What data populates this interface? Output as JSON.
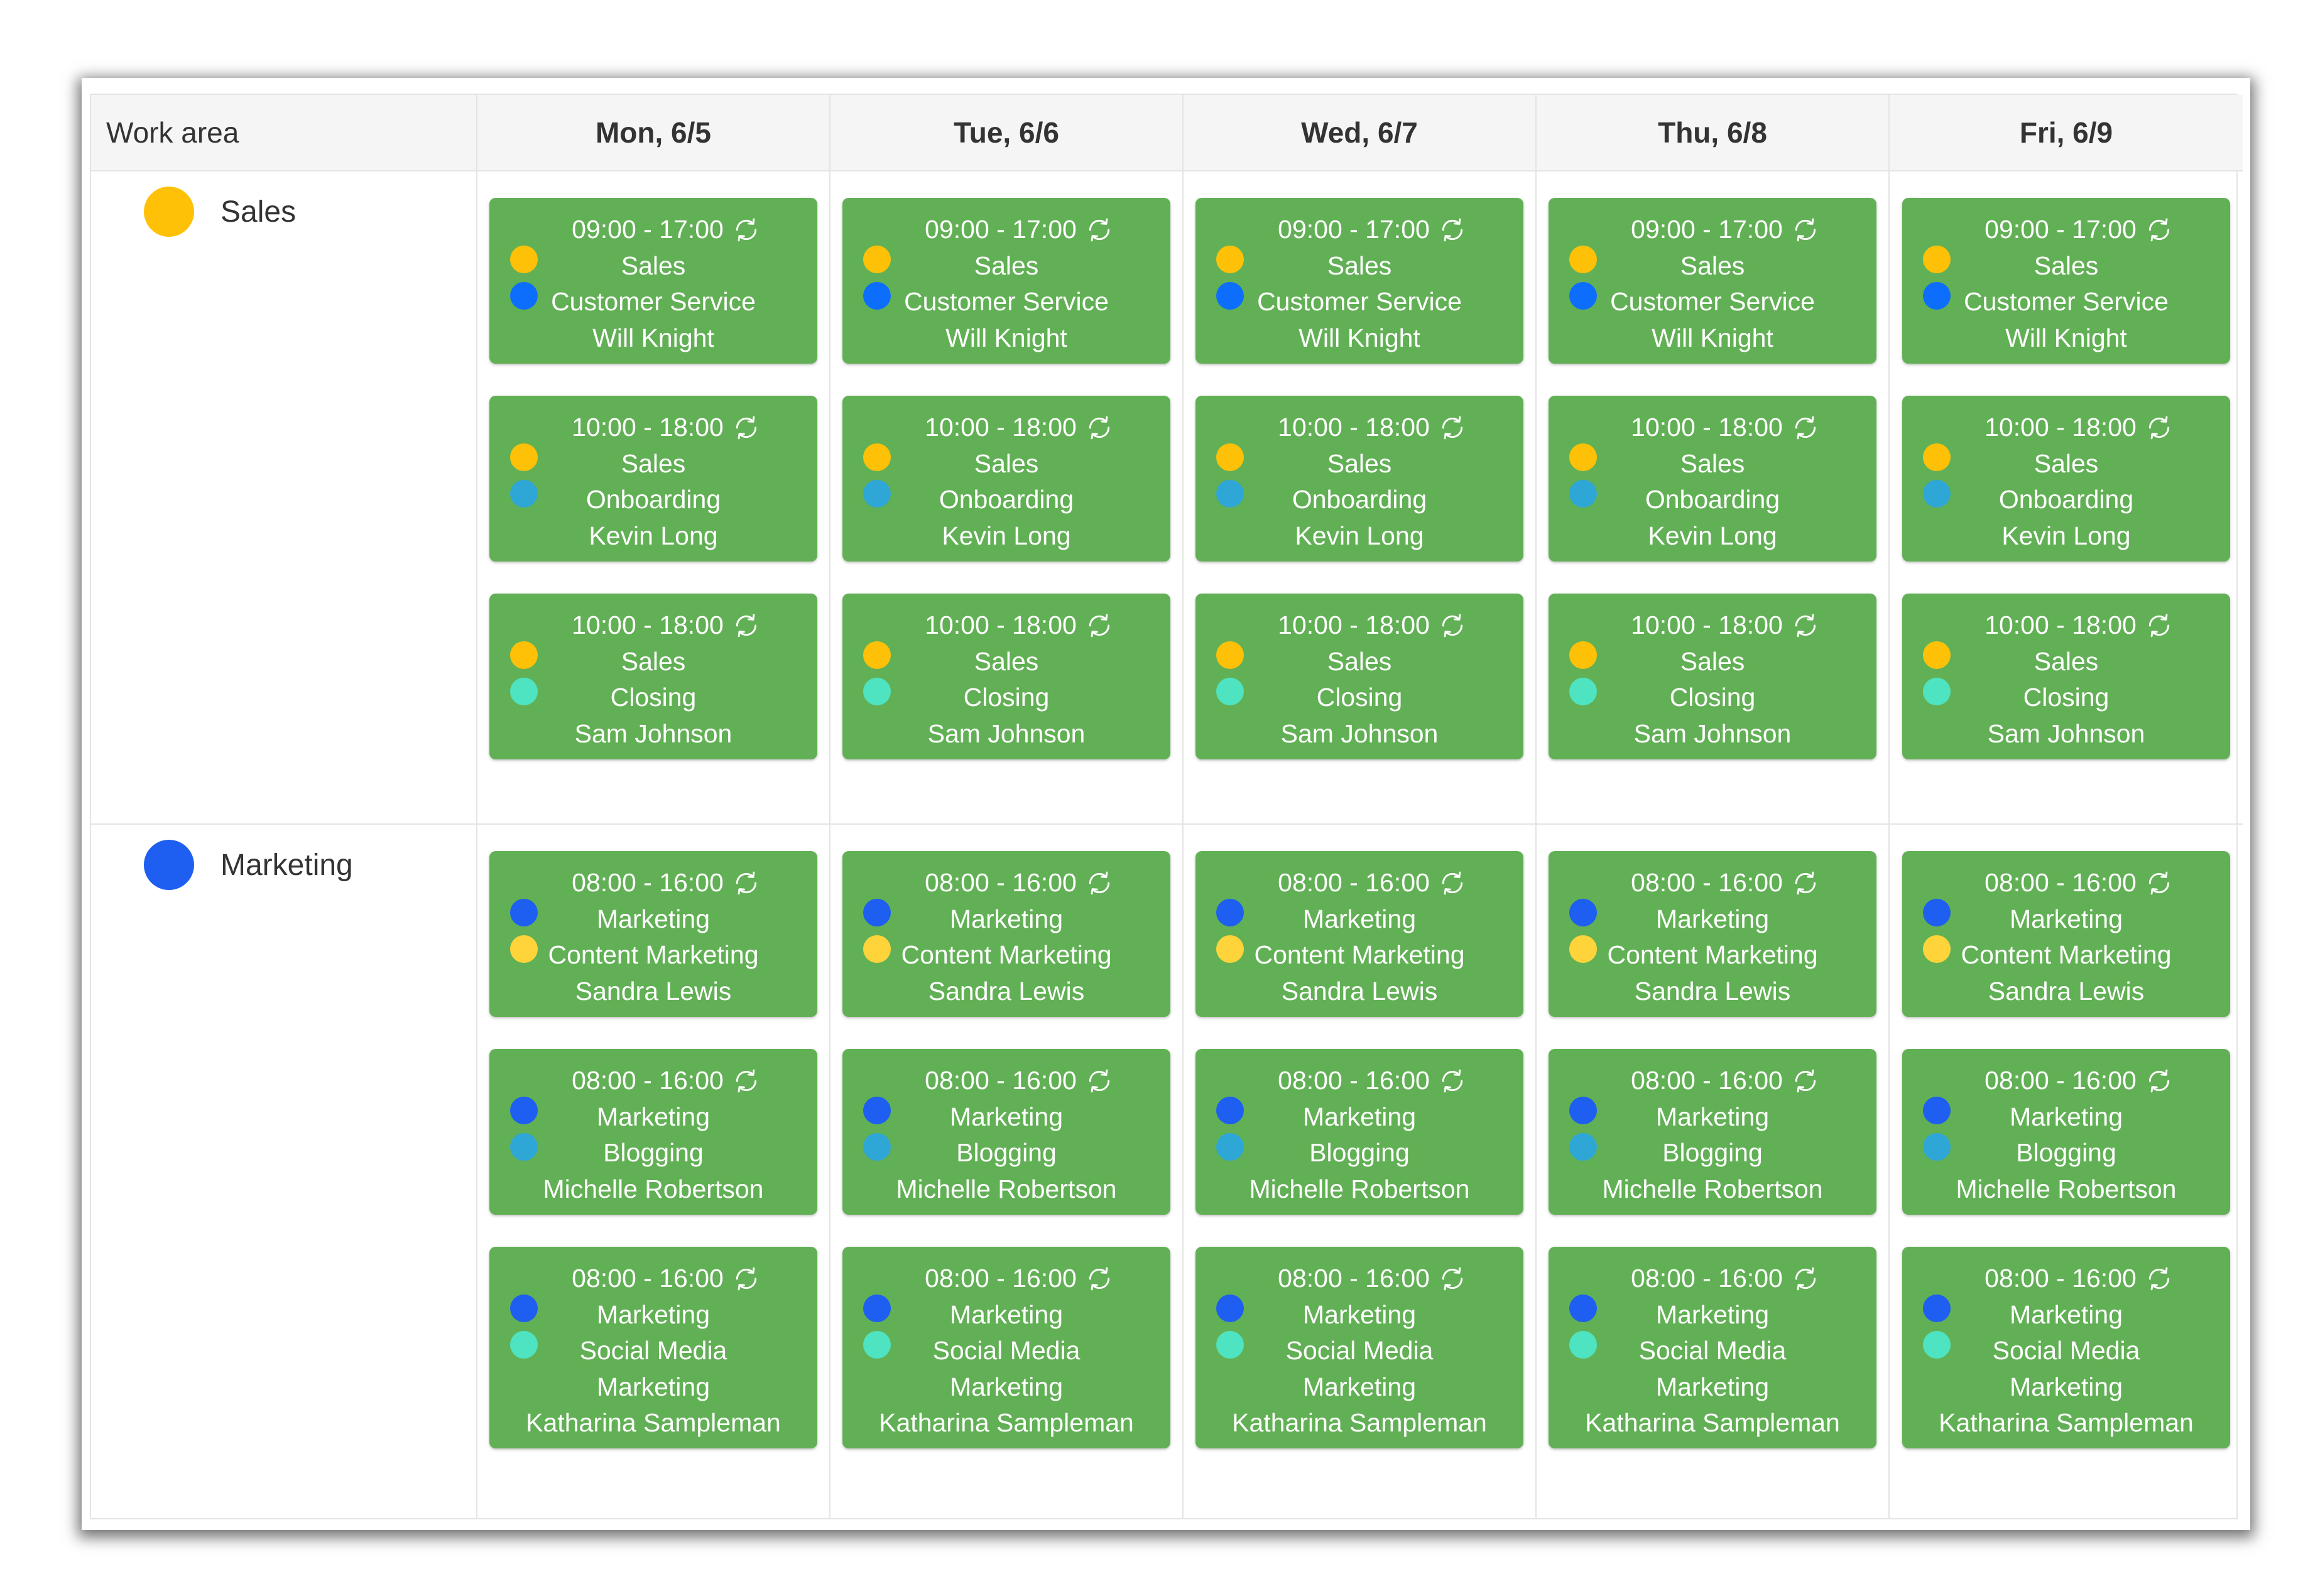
{
  "colors": {
    "sales": "#ffc107",
    "marketing": "#1e5ef0",
    "customer_service": "#0d6efd",
    "onboarding": "#2ea6d6",
    "closing": "#4ee3c1",
    "content_marketing": "#ffd43b",
    "blogging": "#2ea6d6",
    "social_media_marketing": "#4ee3c1",
    "shift_bg": "#62b055"
  },
  "header": {
    "work_area": "Work area",
    "days": [
      "Mon, 6/5",
      "Tue, 6/6",
      "Wed, 6/7",
      "Thu, 6/8",
      "Fri, 6/9"
    ]
  },
  "areas": [
    {
      "name": "Sales",
      "color": "#ffc107",
      "shifts": [
        {
          "time": "09:00 - 17:00",
          "area": "Sales",
          "task": "Customer Service",
          "person": "Will Knight",
          "dot1": "#ffc107",
          "dot2": "#0d6efd",
          "icon": "refresh-icon"
        },
        {
          "time": "10:00 - 18:00",
          "area": "Sales",
          "task": "Onboarding",
          "person": "Kevin Long",
          "dot1": "#ffc107",
          "dot2": "#2ea6d6",
          "icon": "refresh-icon"
        },
        {
          "time": "10:00 - 18:00",
          "area": "Sales",
          "task": "Closing",
          "person": "Sam Johnson",
          "dot1": "#ffc107",
          "dot2": "#4ee3c1",
          "icon": "refresh-icon"
        }
      ]
    },
    {
      "name": "Marketing",
      "color": "#1e5ef0",
      "shifts": [
        {
          "time": "08:00 - 16:00",
          "area": "Marketing",
          "task": "Content Marketing",
          "person": "Sandra Lewis",
          "dot1": "#1e5ef0",
          "dot2": "#ffd43b",
          "icon": "refresh-icon"
        },
        {
          "time": "08:00 - 16:00",
          "area": "Marketing",
          "task": "Blogging",
          "person": "Michelle Robertson",
          "dot1": "#1e5ef0",
          "dot2": "#2ea6d6",
          "icon": "refresh-icon"
        },
        {
          "time": "08:00 - 16:00",
          "area": "Marketing",
          "task_lines": [
            "Social Media",
            "Marketing"
          ],
          "person": "Katharina Sampleman",
          "dot1": "#1e5ef0",
          "dot2": "#4ee3c1",
          "icon": "refresh-icon"
        }
      ]
    }
  ]
}
